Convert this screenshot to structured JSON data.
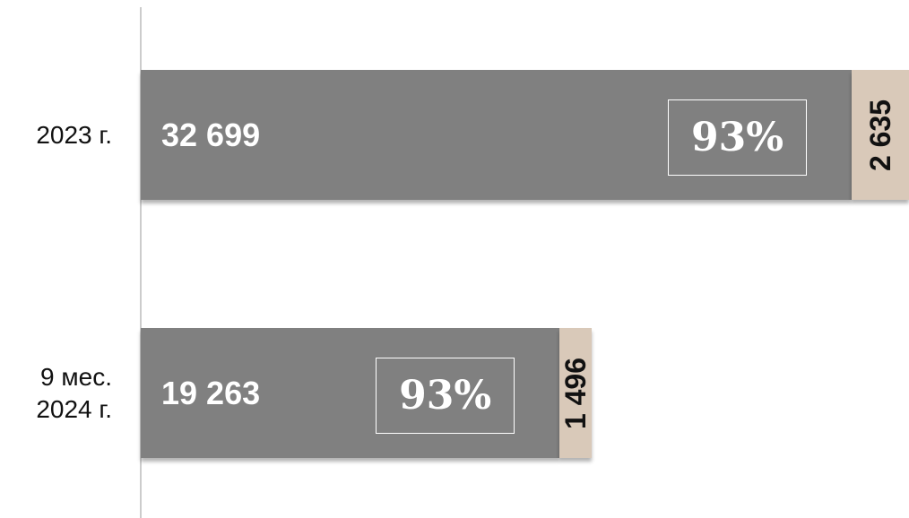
{
  "chart_data": {
    "type": "stacked_bar_horizontal",
    "categories": [
      "2023 г.",
      "9 мес.\n2024 г."
    ],
    "series": [
      {
        "color": "#808080",
        "values": [
          32699,
          19263
        ],
        "value_labels": [
          "32 699",
          "19 263"
        ]
      },
      {
        "color": "#d9c9b9",
        "values": [
          2635,
          1496
        ],
        "value_labels": [
          "2 635",
          "1 496"
        ]
      }
    ],
    "annotations": [
      "93%",
      "93%"
    ]
  }
}
